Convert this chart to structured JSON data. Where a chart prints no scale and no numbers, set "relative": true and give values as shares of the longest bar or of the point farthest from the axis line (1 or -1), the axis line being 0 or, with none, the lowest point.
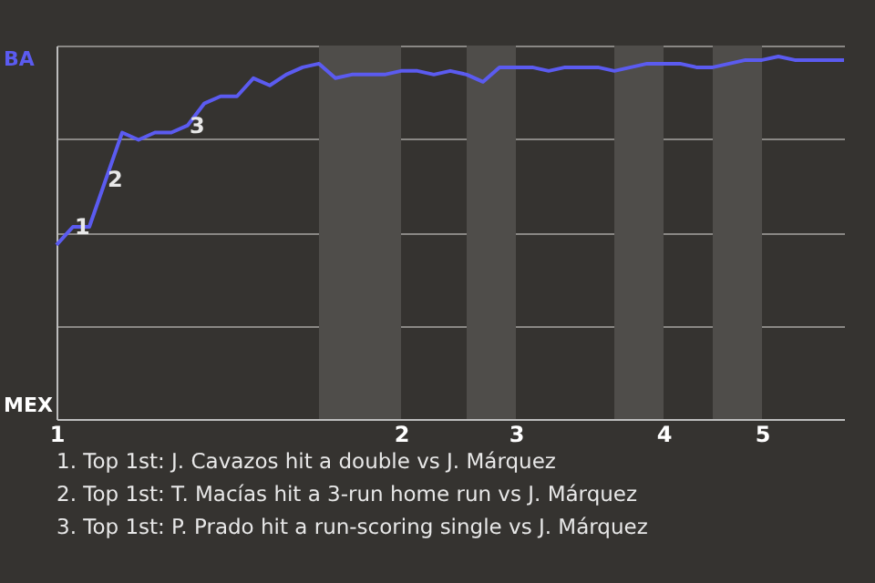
{
  "chart_data": {
    "type": "line",
    "relative": true,
    "categories": [
      "1",
      null,
      null,
      null,
      null,
      null,
      null,
      null,
      null,
      null,
      null,
      null,
      null,
      null,
      null,
      null,
      null,
      null,
      null,
      null,
      null,
      "2",
      null,
      null,
      null,
      null,
      null,
      null,
      "3",
      null,
      null,
      null,
      null,
      null,
      null,
      null,
      null,
      "4",
      null,
      null,
      null,
      null,
      null,
      "5",
      null,
      null,
      null,
      null,
      null
    ],
    "grid": "y",
    "marker": "none",
    "line_style": "solid",
    "series": [
      {
        "color": "#5b5bf0",
        "values": [
          0.48,
          0.53,
          0.53,
          0.66,
          0.79,
          0.77,
          0.79,
          0.79,
          0.81,
          0.87,
          0.89,
          0.89,
          0.94,
          0.92,
          0.95,
          0.97,
          0.98,
          0.94,
          0.95,
          0.95,
          0.95,
          0.96,
          0.96,
          0.95,
          0.96,
          0.95,
          0.93,
          0.97,
          0.97,
          0.97,
          0.96,
          0.97,
          0.97,
          0.97,
          0.96,
          0.97,
          0.98,
          0.98,
          0.98,
          0.97,
          0.97,
          0.98,
          0.99,
          0.99,
          1,
          0.99,
          0.99,
          0.99,
          0.99
        ]
      }
    ],
    "annotations": [
      {
        "text": "1",
        "y": 0.53
      },
      {
        "text": "2",
        "y": 0.66
      },
      {
        "text": "3",
        "y": 0.81
      },
      "BA",
      "MEX",
      "1. Top 1st: J. Cavazos hit a double vs J. Márquez",
      "2. Top 1st: T. Macías hit a 3-run home run vs J. Márquez",
      "3. Top 1st: P. Prado hit a run-scoring single vs J. Márquez"
    ]
  }
}
